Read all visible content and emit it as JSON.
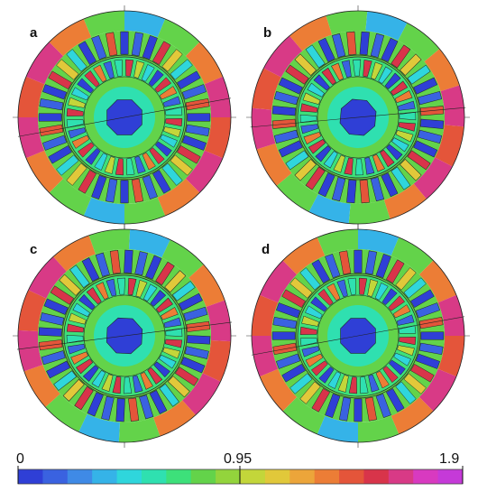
{
  "panels": [
    {
      "id": "a",
      "label": "a",
      "rotation_deg": 0
    },
    {
      "id": "b",
      "label": "b",
      "rotation_deg": 5
    },
    {
      "id": "c",
      "label": "c",
      "rotation_deg": 3
    },
    {
      "id": "d",
      "label": "d",
      "rotation_deg": 0
    }
  ],
  "colorbar": {
    "min_label": "0",
    "mid_label": "0.95",
    "max_label": "1.9",
    "colors": [
      "#2f3fd6",
      "#3a62e0",
      "#3f8ae6",
      "#35b3e8",
      "#2fd6dc",
      "#2fe0b0",
      "#3de07a",
      "#63d34a",
      "#93d43c",
      "#c3d63a",
      "#e1c83a",
      "#eca53a",
      "#ec7d36",
      "#e4553a",
      "#d8344a",
      "#d83a86",
      "#d83ac0",
      "#c53ad8"
    ]
  },
  "colors": {
    "stator_yoke": "#e4553a",
    "rotor_core": "#63d34a",
    "shaft": "#2f3fd6",
    "slot_outline": "#222222"
  }
}
